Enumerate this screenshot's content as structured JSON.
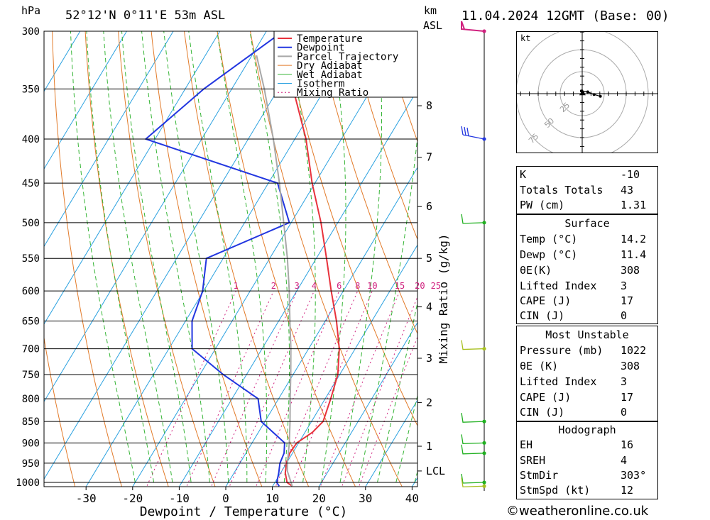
{
  "header": {
    "location": "52°12'N  0°11'E  53m  ASL",
    "hpa_unit": "hPa",
    "km_unit": "km",
    "asl_unit": "ASL",
    "datetime": "11.04.2024  12GMT  (Base: 00)"
  },
  "chart_data": {
    "type": "line",
    "subtype": "skew-T log-P sounding",
    "xlabel": "Dewpoint / Temperature (°C)",
    "ylabel": "hPa",
    "secondary_ylabel": "Mixing Ratio (g/kg)",
    "xlim": [
      -40,
      40
    ],
    "ylim": [
      1000,
      300
    ],
    "y_log_scale": true,
    "x_ticks": [
      -30,
      -20,
      -10,
      0,
      10,
      20,
      30,
      40
    ],
    "pressure_ticks": [
      300,
      350,
      400,
      450,
      500,
      550,
      600,
      650,
      700,
      750,
      800,
      850,
      900,
      950,
      1000
    ],
    "height_km_ticks": [
      {
        "label": "8",
        "p": 366
      },
      {
        "label": "7",
        "p": 420
      },
      {
        "label": "6",
        "p": 479
      },
      {
        "label": "5",
        "p": 550
      },
      {
        "label": "4",
        "p": 626
      },
      {
        "label": "3",
        "p": 718
      },
      {
        "label": "2",
        "p": 808
      },
      {
        "label": "1",
        "p": 908
      },
      {
        "label": "LCL",
        "p": 970
      }
    ],
    "mixing_ratio_labels": [
      "1",
      "2",
      "3",
      "4",
      "6",
      "8",
      "10",
      "15",
      "20",
      "25"
    ],
    "mixing_ratio_label_pressure": 600,
    "legend": [
      "Temperature",
      "Dewpoint",
      "Parcel Trajectory",
      "Dry Adiabat",
      "Wet Adiabat",
      "Isotherm",
      "Mixing Ratio"
    ],
    "legend_position": "top-right",
    "colors": {
      "temperature": "#e8323c",
      "dewpoint": "#2236e0",
      "parcel": "#a8a8a8",
      "dry_adiabat": "#e27b2a",
      "wet_adiabat": "#36b536",
      "isotherm": "#2aa1e0",
      "mixing_ratio": "#d0217e"
    },
    "series": [
      {
        "name": "Temperature",
        "points": [
          [
            1010,
            14.2
          ],
          [
            1000,
            12.6
          ],
          [
            975,
            11.0
          ],
          [
            950,
            10.0
          ],
          [
            925,
            9.4
          ],
          [
            900,
            9.6
          ],
          [
            875,
            11.6
          ],
          [
            850,
            12.5
          ],
          [
            800,
            11.2
          ],
          [
            750,
            9.6
          ],
          [
            700,
            6.6
          ],
          [
            650,
            2.4
          ],
          [
            600,
            -2.6
          ],
          [
            550,
            -7.8
          ],
          [
            500,
            -13.6
          ],
          [
            450,
            -20.6
          ],
          [
            400,
            -27.6
          ],
          [
            350,
            -36.8
          ],
          [
            300,
            -46.4
          ]
        ]
      },
      {
        "name": "Dewpoint",
        "points": [
          [
            1010,
            11.4
          ],
          [
            1000,
            10.4
          ],
          [
            975,
            9.6
          ],
          [
            950,
            8.6
          ],
          [
            925,
            8.2
          ],
          [
            900,
            7.0
          ],
          [
            850,
            -0.8
          ],
          [
            800,
            -4.4
          ],
          [
            750,
            -15.0
          ],
          [
            700,
            -25.0
          ],
          [
            650,
            -28.6
          ],
          [
            600,
            -30.2
          ],
          [
            550,
            -33.6
          ],
          [
            500,
            -20.4
          ],
          [
            450,
            -28.0
          ],
          [
            400,
            -62.0
          ],
          [
            350,
            -56.0
          ],
          [
            300,
            -46.4
          ]
        ]
      },
      {
        "name": "Parcel Trajectory",
        "points": [
          [
            1010,
            14.2
          ],
          [
            970,
            11.2
          ],
          [
            950,
            10.2
          ],
          [
            900,
            8.0
          ],
          [
            850,
            5.4
          ],
          [
            800,
            2.5
          ],
          [
            750,
            -0.5
          ],
          [
            700,
            -3.8
          ],
          [
            650,
            -7.6
          ],
          [
            600,
            -11.6
          ],
          [
            550,
            -16.2
          ],
          [
            500,
            -21.6
          ],
          [
            450,
            -27.6
          ],
          [
            400,
            -34.6
          ],
          [
            350,
            -43.0
          ],
          [
            320,
            -49.0
          ]
        ]
      }
    ],
    "wind_barbs": [
      {
        "p": 300,
        "marker": "pennant",
        "color": "#d0217e"
      },
      {
        "p": 400,
        "marker": "barbs",
        "color": "#2236e0"
      },
      {
        "p": 500,
        "marker": "barb",
        "color": "#20b020"
      },
      {
        "p": 700,
        "marker": "barb",
        "color": "#a8c020"
      },
      {
        "p": 850,
        "marker": "barb",
        "color": "#20b020"
      },
      {
        "p": 900,
        "marker": "barb",
        "color": "#20b020"
      },
      {
        "p": 925,
        "marker": "barb",
        "color": "#20b020"
      },
      {
        "p": 1000,
        "marker": "barb",
        "color": "#20b020"
      },
      {
        "p": 1010,
        "marker": "barb",
        "color": "#a8c020"
      }
    ]
  },
  "hodograph": {
    "unit": "kt",
    "ring_labels": [
      "25",
      "50",
      "75"
    ],
    "trace_uv": [
      [
        -10,
        3
      ],
      [
        -2,
        2
      ],
      [
        6,
        -1
      ],
      [
        14,
        -3
      ]
    ]
  },
  "indices": {
    "top": [
      {
        "label": "K",
        "value": "-10"
      },
      {
        "label": "Totals Totals",
        "value": "43"
      },
      {
        "label": "PW (cm)",
        "value": "1.31"
      }
    ],
    "surface": {
      "title": "Surface",
      "rows": [
        {
          "label": "Temp (°C)",
          "value": "14.2"
        },
        {
          "label": "Dewp (°C)",
          "value": "11.4"
        },
        {
          "label": "θE(K)",
          "value": "308"
        },
        {
          "label": "Lifted Index",
          "value": "3"
        },
        {
          "label": "CAPE (J)",
          "value": "17"
        },
        {
          "label": "CIN (J)",
          "value": "0"
        }
      ]
    },
    "most_unstable": {
      "title": "Most Unstable",
      "rows": [
        {
          "label": "Pressure (mb)",
          "value": "1022"
        },
        {
          "label": "θE (K)",
          "value": "308"
        },
        {
          "label": "Lifted Index",
          "value": "3"
        },
        {
          "label": "CAPE (J)",
          "value": "17"
        },
        {
          "label": "CIN (J)",
          "value": "0"
        }
      ]
    },
    "hodograph": {
      "title": "Hodograph",
      "rows": [
        {
          "label": "EH",
          "value": "16"
        },
        {
          "label": "SREH",
          "value": "4"
        },
        {
          "label": "StmDir",
          "value": "303°"
        },
        {
          "label": "StmSpd (kt)",
          "value": "12"
        }
      ]
    }
  },
  "footer": {
    "text": "©weatheronline.co.uk"
  }
}
